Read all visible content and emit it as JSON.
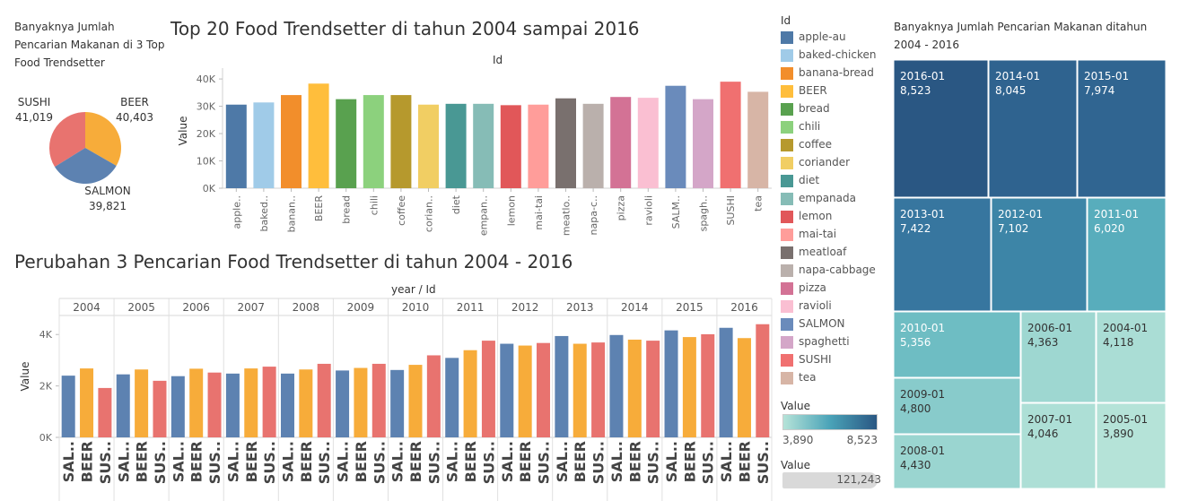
{
  "pie": {
    "title": "Banyaknya Jumlah Pencarian Makanan di 3 Top Food Trendsetter",
    "slices": [
      {
        "name": "SUSHI",
        "value": 41019,
        "value_label": "41,019",
        "color": "#e8736f"
      },
      {
        "name": "BEER",
        "value": 40403,
        "value_label": "40,403",
        "color": "#f7ac3a"
      },
      {
        "name": "SALMON",
        "value": 39821,
        "value_label": "39,821",
        "color": "#5d82b1"
      }
    ]
  },
  "bar": {
    "title": "Top 20 Food Trendsetter di tahun 2004 sampai 2016",
    "x_header": "Id",
    "ylabel": "Value",
    "yticks": [
      "0K",
      "10K",
      "20K",
      "30K",
      "40K"
    ]
  },
  "grouped": {
    "title": "Perubahan 3 Pencarian Food Trendsetter di tahun 2004 - 2016",
    "header": "year / Id",
    "ylabel": "Value",
    "yticks": [
      "0K",
      "2K",
      "4K"
    ],
    "cat_labels": [
      "SAL..",
      "BEER",
      "SUS.."
    ]
  },
  "legend": {
    "title": "Id",
    "items": [
      {
        "label": "apple-au",
        "color": "#4e79a7"
      },
      {
        "label": "baked-chicken",
        "color": "#a0cbe8"
      },
      {
        "label": "banana-bread",
        "color": "#f28e2b"
      },
      {
        "label": "BEER",
        "color": "#ffbe3c"
      },
      {
        "label": "bread",
        "color": "#59a14f"
      },
      {
        "label": "chili",
        "color": "#8cd17d"
      },
      {
        "label": "coffee",
        "color": "#b6992d"
      },
      {
        "label": "coriander",
        "color": "#f1ce63"
      },
      {
        "label": "diet",
        "color": "#499894"
      },
      {
        "label": "empanada",
        "color": "#86bcb6"
      },
      {
        "label": "lemon",
        "color": "#e15759"
      },
      {
        "label": "mai-tai",
        "color": "#ff9d9a"
      },
      {
        "label": "meatloaf",
        "color": "#79706e"
      },
      {
        "label": "napa-cabbage",
        "color": "#bab0ac"
      },
      {
        "label": "pizza",
        "color": "#d37295"
      },
      {
        "label": "ravioli",
        "color": "#fabfd2"
      },
      {
        "label": "SALMON",
        "color": "#6a8bbb"
      },
      {
        "label": "spaghetti",
        "color": "#d4a6c8"
      },
      {
        "label": "SUSHI",
        "color": "#f07070"
      },
      {
        "label": "tea",
        "color": "#d7b5a6"
      }
    ]
  },
  "color_scale": {
    "title": "Value",
    "min_label": "3,890",
    "max_label": "8,523",
    "min_color": "#b5e3d8",
    "max_color": "#2a5783"
  },
  "size_scale": {
    "title": "Value",
    "value_label": "121,243"
  },
  "treemap": {
    "title": "Banyaknya Jumlah Pencarian Makanan ditahun 2004 - 2016"
  },
  "chart_data": [
    {
      "type": "pie",
      "title": "Banyaknya Jumlah Pencarian Makanan di 3 Top Food Trendsetter",
      "categories": [
        "SUSHI",
        "BEER",
        "SALMON"
      ],
      "values": [
        41019,
        40403,
        39821
      ]
    },
    {
      "type": "bar",
      "title": "Top 20 Food Trendsetter di tahun 2004 sampai 2016",
      "xlabel": "Id",
      "ylabel": "Value",
      "ylim": [
        0,
        42000
      ],
      "categories": [
        "apple-au",
        "baked-chicken",
        "banana-bread",
        "BEER",
        "bread",
        "chili",
        "coffee",
        "coriander",
        "diet",
        "empanada",
        "lemon",
        "mai-tai",
        "meatloaf",
        "napa-cabbage",
        "pizza",
        "ravioli",
        "SALMON",
        "spaghetti",
        "SUSHI",
        "tea"
      ],
      "tick_labels": [
        "apple..",
        "baked..",
        "banan..",
        "BEER",
        "bread",
        "chili",
        "coffee",
        "corian..",
        "diet",
        "empan..",
        "lemon",
        "mai-tai",
        "meatlo..",
        "napa-c..",
        "pizza",
        "ravioli",
        "SALM..",
        "spagh..",
        "SUSHI",
        "tea"
      ],
      "values": [
        30600,
        31400,
        34100,
        38300,
        32600,
        34100,
        34100,
        30600,
        30900,
        30900,
        30400,
        30600,
        32900,
        30900,
        33400,
        33100,
        37500,
        32600,
        39000,
        35300
      ]
    },
    {
      "type": "bar",
      "title": "Perubahan 3 Pencarian Food Trendsetter di tahun 2004 - 2016",
      "xlabel": "year / Id",
      "ylabel": "Value",
      "ylim": [
        0,
        4600
      ],
      "years": [
        "2004",
        "2005",
        "2006",
        "2007",
        "2008",
        "2009",
        "2010",
        "2011",
        "2012",
        "2013",
        "2014",
        "2015",
        "2016"
      ],
      "series": [
        {
          "name": "SALMON",
          "values": [
            2400,
            2450,
            2380,
            2480,
            2480,
            2600,
            2620,
            3090,
            3640,
            3940,
            3980,
            4160,
            4260
          ]
        },
        {
          "name": "BEER",
          "values": [
            2680,
            2640,
            2670,
            2680,
            2640,
            2700,
            2820,
            3390,
            3570,
            3640,
            3800,
            3900,
            3860
          ]
        },
        {
          "name": "SUSHI",
          "values": [
            1920,
            2200,
            2520,
            2750,
            2860,
            2860,
            3190,
            3760,
            3670,
            3690,
            3760,
            4010,
            4400
          ]
        }
      ]
    },
    {
      "type": "heatmap",
      "title": "Banyaknya Jumlah Pencarian Makanan ditahun 2004 - 2016",
      "categories": [
        "2016-01",
        "2014-01",
        "2015-01",
        "2013-01",
        "2012-01",
        "2011-01",
        "2010-01",
        "2006-01",
        "2004-01",
        "2009-01",
        "2007-01",
        "2005-01",
        "2008-01"
      ],
      "values": [
        8523,
        8045,
        7974,
        7422,
        7102,
        6020,
        5356,
        4363,
        4118,
        4800,
        4046,
        3890,
        4430
      ],
      "value_labels": [
        "8,523",
        "8,045",
        "7,974",
        "7,422",
        "7,102",
        "6,020",
        "5,356",
        "4,363",
        "4,118",
        "4,800",
        "4,046",
        "3,890",
        "4,430"
      ]
    }
  ]
}
